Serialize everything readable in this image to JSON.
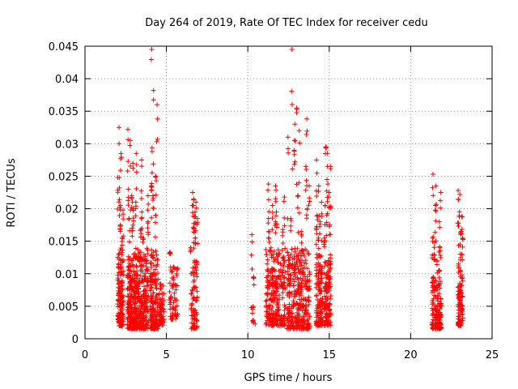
{
  "chart_data": {
    "type": "scatter",
    "title": "Day 264 of 2019, Rate Of TEC Index for receiver cedu",
    "xlabel": "GPS time / hours",
    "ylabel": "ROTI / TECUs",
    "xlim": [
      0,
      25
    ],
    "ylim": [
      0,
      0.045
    ],
    "xticks": [
      0,
      5,
      10,
      15,
      20,
      25
    ],
    "xtick_labels": [
      "0",
      "5",
      "10",
      "15",
      "20",
      "25"
    ],
    "yticks": [
      0,
      0.005,
      0.01,
      0.015,
      0.02,
      0.025,
      0.03,
      0.035,
      0.04,
      0.045
    ],
    "ytick_labels": [
      "0",
      "0.005",
      "0.01",
      "0.015",
      "0.02",
      "0.025",
      "0.03",
      "0.035",
      "0.04",
      "0.045"
    ],
    "grid": true,
    "marker": "+",
    "color": "#ff0000",
    "series": [
      {
        "name": "ROTI",
        "clusters": [
          {
            "x": [
              2.0,
              2.35
            ],
            "y_range": [
              0.002,
              0.014
            ],
            "n": 140,
            "spikes": [
              0.0325,
              0.0285,
              0.0248,
              0.0232,
              0.0205,
              0.0198,
              0.0175,
              0.0155
            ]
          },
          {
            "x": [
              2.6,
              3.0
            ],
            "y_range": [
              0.0015,
              0.013
            ],
            "n": 150,
            "spikes": [
              0.0322,
              0.0305,
              0.027,
              0.023,
              0.022,
              0.02,
              0.0185,
              0.017
            ]
          },
          {
            "x": [
              3.0,
              3.9
            ],
            "y_range": [
              0.0015,
              0.014
            ],
            "n": 300,
            "spikes": [
              0.0285,
              0.0275,
              0.022,
              0.021,
              0.0195,
              0.018,
              0.0168,
              0.0155
            ]
          },
          {
            "x": [
              4.0,
              4.5
            ],
            "y_range": [
              0.0015,
              0.014
            ],
            "n": 170,
            "spikes": [
              0.0445,
              0.0382,
              0.036,
              0.0288,
              0.025,
              0.0235,
              0.022,
              0.019
            ]
          },
          {
            "x": [
              4.55,
              4.85
            ],
            "y_range": [
              0.002,
              0.0085
            ],
            "n": 60,
            "spikes": []
          },
          {
            "x": [
              5.2,
              5.7
            ],
            "y_range": [
              0.003,
              0.011
            ],
            "n": 60,
            "spikes": [
              0.0133,
              0.011
            ]
          },
          {
            "x": [
              6.5,
              6.9
            ],
            "y_range": [
              0.0015,
              0.012
            ],
            "n": 80,
            "spikes": [
              0.0225,
              0.0215,
              0.021,
              0.0205,
              0.0195,
              0.0185,
              0.017,
              0.0155,
              0.014
            ]
          },
          {
            "x": [
              10.2,
              10.5
            ],
            "y_range": [
              0.0018,
              0.005
            ],
            "n": 10,
            "spikes": [
              0.016,
              0.0095
            ]
          },
          {
            "x": [
              11.1,
              12.3
            ],
            "y_range": [
              0.002,
              0.014
            ],
            "n": 260,
            "spikes": [
              0.0238,
              0.0235,
              0.0218,
              0.0205,
              0.0195,
              0.0185,
              0.018,
              0.0168,
              0.0155
            ]
          },
          {
            "x": [
              12.4,
              13.8
            ],
            "y_range": [
              0.0015,
              0.014
            ],
            "n": 320,
            "spikes": [
              0.0445,
              0.0355,
              0.0338,
              0.033,
              0.032,
              0.031,
              0.029,
              0.0265,
              0.0235,
              0.022,
              0.02,
              0.0185,
              0.0165
            ]
          },
          {
            "x": [
              14.2,
              14.6
            ],
            "y_range": [
              0.002,
              0.013
            ],
            "n": 120,
            "spikes": [
              0.0275,
              0.0235,
              0.021,
              0.019,
              0.018,
              0.017,
              0.0155
            ]
          },
          {
            "x": [
              14.7,
              15.1
            ],
            "y_range": [
              0.002,
              0.013
            ],
            "n": 120,
            "spikes": [
              0.0295,
              0.0285,
              0.0265,
              0.0245,
              0.0225,
              0.0205,
              0.019,
              0.0175,
              0.0155
            ]
          },
          {
            "x": [
              21.3,
              21.9
            ],
            "y_range": [
              0.0015,
              0.009
            ],
            "n": 150,
            "spikes": [
              0.0253,
              0.0235,
              0.0225,
              0.0205,
              0.018,
              0.0155,
              0.0148,
              0.014,
              0.013,
              0.012,
              0.0105,
              0.0095
            ]
          },
          {
            "x": [
              22.9,
              23.2
            ],
            "y_range": [
              0.002,
              0.0085
            ],
            "n": 90,
            "spikes": [
              0.0228,
              0.0222,
              0.0188,
              0.0178,
              0.0165,
              0.0155,
              0.0145,
              0.013,
              0.0115,
              0.0105,
              0.0095
            ]
          }
        ]
      }
    ]
  }
}
